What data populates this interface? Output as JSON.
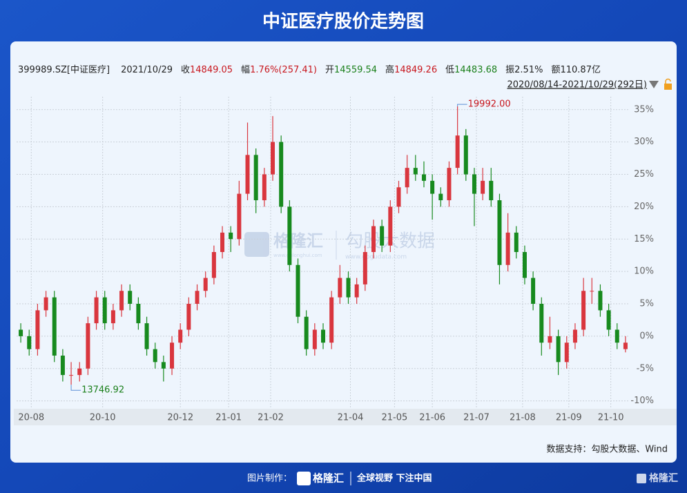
{
  "title": "中证医疗股价走势图",
  "quote": {
    "code": "399989.SZ[中证医疗]",
    "date": "2021/10/29",
    "items": [
      {
        "label": "收",
        "value": "14849.05",
        "color": "#c8161d"
      },
      {
        "label": "幅",
        "value": "1.76%(257.41)",
        "color": "#c8161d"
      },
      {
        "label": "开",
        "value": "14559.54",
        "color": "#1a7f1a"
      },
      {
        "label": "高",
        "value": "14849.26",
        "color": "#c8161d"
      },
      {
        "label": "低",
        "value": "14483.68",
        "color": "#1a7f1a"
      },
      {
        "label": "振",
        "value": "2.51%",
        "color": "#222222"
      },
      {
        "label": "额",
        "value": "110.87亿",
        "color": "#222222"
      }
    ]
  },
  "range": "2020/08/14-2021/10/29(292日)",
  "watermark": {
    "brand": "格隆汇",
    "site": "www.gelonghui.com",
    "data": "勾股大数据",
    "data_site": "www.gogudata.com"
  },
  "chart_data": {
    "type": "candlestick",
    "up_color": "#d9363e",
    "down_color": "#178a1e",
    "grid": true,
    "candles": [
      [
        1,
        2,
        -1,
        0
      ],
      [
        0,
        1,
        -3,
        -2
      ],
      [
        -2,
        5,
        -3,
        4
      ],
      [
        4,
        7,
        3,
        6
      ],
      [
        6,
        7,
        -4,
        -3
      ],
      [
        -3,
        -2,
        -7,
        -6
      ],
      [
        -6,
        -4,
        -7.5,
        -6
      ],
      [
        -6,
        -4,
        -7,
        -5
      ],
      [
        -5,
        3,
        -6,
        2
      ],
      [
        2,
        7,
        1,
        6
      ],
      [
        6,
        7,
        1,
        2
      ],
      [
        2,
        5,
        1,
        4
      ],
      [
        4,
        8,
        3,
        7
      ],
      [
        7,
        8,
        4,
        5
      ],
      [
        5,
        6,
        1,
        2
      ],
      [
        2,
        3,
        -3,
        -2
      ],
      [
        -2,
        -1,
        -5,
        -4
      ],
      [
        -4,
        -3,
        -7,
        -5
      ],
      [
        -5,
        0,
        -6,
        -1
      ],
      [
        -1,
        2,
        -2,
        1
      ],
      [
        1,
        6,
        0,
        5
      ],
      [
        5,
        8,
        4,
        7
      ],
      [
        7,
        10,
        6,
        9
      ],
      [
        9,
        14,
        8,
        13
      ],
      [
        13,
        17,
        12,
        16
      ],
      [
        16,
        17,
        13,
        15
      ],
      [
        15,
        24,
        14,
        22
      ],
      [
        22,
        33,
        21,
        28
      ],
      [
        28,
        29,
        19,
        21
      ],
      [
        21,
        26,
        20,
        25
      ],
      [
        25,
        34,
        24,
        30
      ],
      [
        30,
        31,
        19,
        20
      ],
      [
        20,
        21,
        10,
        11
      ],
      [
        11,
        12,
        2,
        3
      ],
      [
        3,
        4,
        -3,
        -2
      ],
      [
        -2,
        2,
        -3,
        1
      ],
      [
        1,
        2,
        -2,
        -1
      ],
      [
        -1,
        7,
        -2,
        6
      ],
      [
        6,
        11,
        5,
        9
      ],
      [
        9,
        10,
        5,
        6
      ],
      [
        6,
        9,
        5,
        8
      ],
      [
        8,
        14,
        7,
        13
      ],
      [
        13,
        18,
        12,
        17
      ],
      [
        17,
        18,
        13,
        14
      ],
      [
        14,
        21,
        13,
        20
      ],
      [
        20,
        24,
        19,
        23
      ],
      [
        23,
        28,
        22,
        26
      ],
      [
        26,
        28,
        24,
        25
      ],
      [
        25,
        27,
        23,
        24
      ],
      [
        24,
        25,
        18,
        22
      ],
      [
        22,
        23,
        20,
        21
      ],
      [
        21,
        27,
        20,
        26
      ],
      [
        26,
        35.5,
        25,
        31
      ],
      [
        31,
        32,
        24,
        25
      ],
      [
        25,
        26,
        17,
        22
      ],
      [
        22,
        26,
        21,
        24
      ],
      [
        24,
        26,
        20,
        21
      ],
      [
        21,
        22,
        8,
        11
      ],
      [
        11,
        19,
        10,
        16
      ],
      [
        16,
        17,
        12,
        13
      ],
      [
        13,
        14,
        8,
        9
      ],
      [
        9,
        10,
        4,
        5
      ],
      [
        5,
        6,
        -3,
        -1
      ],
      [
        -1,
        3,
        -2,
        0
      ],
      [
        0,
        1,
        -6,
        -4
      ],
      [
        -4,
        0,
        -5,
        -1
      ],
      [
        -1,
        2,
        -2,
        1
      ],
      [
        1,
        9,
        0,
        7
      ],
      [
        7,
        9,
        5,
        7
      ],
      [
        7,
        8,
        3,
        4
      ],
      [
        4,
        5,
        0,
        1
      ],
      [
        1,
        2,
        -2,
        -1
      ],
      [
        -2,
        0,
        -2.5,
        -1
      ]
    ],
    "max_label": "19992.00",
    "min_label": "13746.92",
    "xlim": [
      0,
      73
    ],
    "xticks": [
      {
        "value": 1.75,
        "label": "20-08"
      },
      {
        "value": 10.25,
        "label": "20-10"
      },
      {
        "value": 19.5,
        "label": "20-12"
      },
      {
        "value": 25.25,
        "label": "21-01"
      },
      {
        "value": 30.25,
        "label": "21-02"
      },
      {
        "value": 39.75,
        "label": "21-04"
      },
      {
        "value": 45,
        "label": "21-05"
      },
      {
        "value": 49.5,
        "label": "21-06"
      },
      {
        "value": 54.75,
        "label": "21-07"
      },
      {
        "value": 60.25,
        "label": "21-08"
      },
      {
        "value": 65.75,
        "label": "21-09"
      },
      {
        "value": 70.75,
        "label": "21-10"
      }
    ],
    "ylim": [
      -11,
      37
    ],
    "yticks": [
      {
        "value": 35,
        "label": "35%"
      },
      {
        "value": 30,
        "label": "30%"
      },
      {
        "value": 25,
        "label": "25%"
      },
      {
        "value": 20,
        "label": "20%"
      },
      {
        "value": 15,
        "label": "15%"
      },
      {
        "value": 10,
        "label": "10%"
      },
      {
        "value": 5,
        "label": "5%"
      },
      {
        "value": 0,
        "label": "0%"
      },
      {
        "value": -5,
        "label": "-5%"
      },
      {
        "value": -10,
        "label": "-10%"
      }
    ]
  },
  "source": "数据支持：勾股大数据、Wind",
  "footer": {
    "made_by": "图片制作：",
    "brand": "格隆汇",
    "slogan": "全球视野 下注中国",
    "corner": "格隆汇"
  }
}
